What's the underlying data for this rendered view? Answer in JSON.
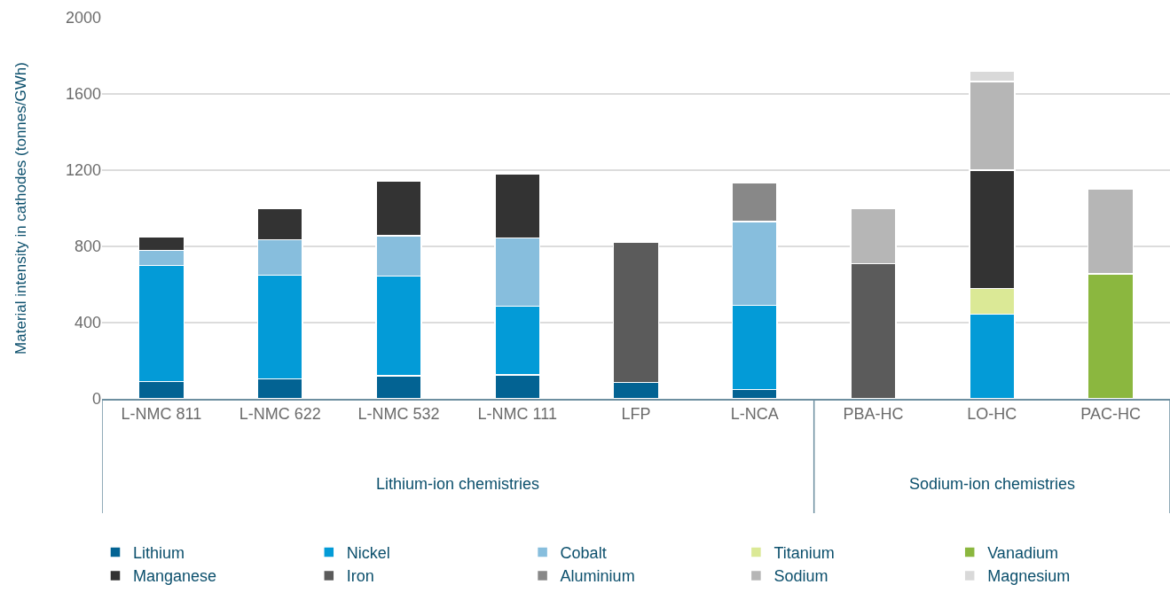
{
  "chart_data": {
    "type": "bar",
    "stacked": true,
    "ylabel": "Material intensity in cathodes (tonnes/GWh)",
    "categories": [
      "L-NMC 811",
      "L-NMC 622",
      "L-NMC 532",
      "L-NMC 111",
      "LFP",
      "L-NCA",
      "PBA-HC",
      "LO-HC",
      "PAC-HC"
    ],
    "series": [
      {
        "name": "Lithium",
        "color": "#036393",
        "values": [
          90,
          105,
          120,
          125,
          85,
          50,
          null,
          null,
          null
        ]
      },
      {
        "name": "Nickel",
        "color": "#039bd7",
        "values": [
          610,
          545,
          525,
          360,
          null,
          440,
          null,
          445,
          null
        ]
      },
      {
        "name": "Cobalt",
        "color": "#87bedd",
        "values": [
          80,
          185,
          210,
          360,
          null,
          440,
          null,
          null,
          null
        ]
      },
      {
        "name": "Titanium",
        "color": "#dbe996",
        "values": [
          null,
          null,
          null,
          null,
          null,
          null,
          null,
          135,
          null
        ]
      },
      {
        "name": "Vanadium",
        "color": "#8bb73f",
        "values": [
          null,
          null,
          null,
          null,
          null,
          null,
          null,
          null,
          655
        ]
      },
      {
        "name": "Manganese",
        "color": "#333333",
        "values": [
          70,
          165,
          290,
          335,
          null,
          null,
          null,
          620,
          null
        ]
      },
      {
        "name": "Iron",
        "color": "#5b5b5b",
        "values": [
          null,
          null,
          null,
          null,
          735,
          null,
          710,
          null,
          null
        ]
      },
      {
        "name": "Aluminium",
        "color": "#888888",
        "values": [
          null,
          null,
          null,
          null,
          null,
          205,
          null,
          null,
          null
        ]
      },
      {
        "name": "Sodium",
        "color": "#b6b6b6",
        "values": [
          null,
          null,
          null,
          null,
          null,
          null,
          290,
          465,
          445
        ]
      },
      {
        "name": "Magnesium",
        "color": "#d9d9d9",
        "values": [
          null,
          null,
          null,
          null,
          null,
          null,
          null,
          55,
          null
        ]
      }
    ],
    "ylim": [
      0,
      2000
    ],
    "yticks": [
      0,
      400,
      800,
      1200,
      1600,
      2000
    ],
    "grid": "y",
    "legend": "bottom",
    "annotations": [
      "Lithium-ion chemistries",
      "Sodium-ion chemistries"
    ]
  }
}
